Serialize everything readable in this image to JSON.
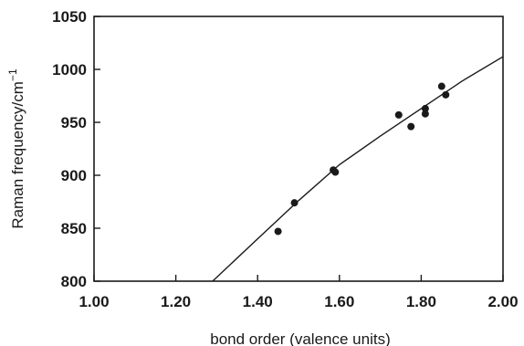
{
  "chart_data": {
    "type": "scatter",
    "title": "",
    "xlabel": "bond order (valence units)",
    "ylabel": "Raman frequency/cm",
    "ylabel_sup": "−1",
    "xlim": [
      1.0,
      2.0
    ],
    "ylim": [
      800,
      1050
    ],
    "x_ticks": [
      1.0,
      1.2,
      1.4,
      1.6,
      1.8,
      2.0
    ],
    "x_tick_labels": [
      "1.00",
      "1.20",
      "1.40",
      "1.60",
      "1.80",
      "2.00"
    ],
    "y_ticks": [
      800,
      850,
      900,
      950,
      1000,
      1050
    ],
    "y_tick_labels": [
      "800",
      "850",
      "900",
      "950",
      "1000",
      "1050"
    ],
    "grid": false,
    "legend": "none",
    "colors": {
      "points": "#1a1a1a",
      "curve": "#1a1a1a",
      "axes": "#1a1a1a"
    },
    "series": [
      {
        "kind": "points",
        "points": [
          {
            "x": 1.45,
            "y": 847
          },
          {
            "x": 1.49,
            "y": 874
          },
          {
            "x": 1.585,
            "y": 905
          },
          {
            "x": 1.59,
            "y": 903
          },
          {
            "x": 1.745,
            "y": 957
          },
          {
            "x": 1.775,
            "y": 946
          },
          {
            "x": 1.81,
            "y": 958
          },
          {
            "x": 1.81,
            "y": 963
          },
          {
            "x": 1.85,
            "y": 984
          },
          {
            "x": 1.86,
            "y": 976
          }
        ]
      },
      {
        "kind": "fit-curve",
        "points": [
          {
            "x": 1.29,
            "y": 800
          },
          {
            "x": 1.4,
            "y": 840
          },
          {
            "x": 1.5,
            "y": 876
          },
          {
            "x": 1.6,
            "y": 910
          },
          {
            "x": 1.7,
            "y": 937
          },
          {
            "x": 1.8,
            "y": 963
          },
          {
            "x": 1.9,
            "y": 989
          },
          {
            "x": 2.0,
            "y": 1012
          }
        ]
      }
    ]
  }
}
